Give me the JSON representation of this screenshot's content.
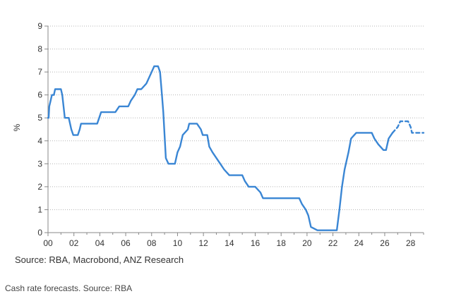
{
  "chart_data": {
    "type": "line",
    "ylabel": "%",
    "ylim": [
      0,
      9
    ],
    "xlim": [
      2000,
      2029
    ],
    "y_ticks": [
      "0",
      "1",
      "2",
      "3",
      "4",
      "5",
      "6",
      "7",
      "8",
      "9"
    ],
    "x_ticks": [
      "00",
      "02",
      "04",
      "06",
      "08",
      "10",
      "12",
      "14",
      "16",
      "18",
      "20",
      "22",
      "24",
      "26",
      "28"
    ],
    "grid": "horizontal dotted",
    "colors": {
      "line": "#3a86d4",
      "grid": "#b5b5b5",
      "axis": "#888888"
    },
    "series": [
      {
        "style": "solid",
        "x": [
          2000.0,
          2000.05,
          2000.1,
          2000.2,
          2000.3,
          2000.45,
          2000.55,
          2000.7,
          2000.85,
          2001.0,
          2001.1,
          2001.2,
          2001.3,
          2001.45,
          2001.6,
          2001.7,
          2001.8,
          2001.95,
          2002.3,
          2002.45,
          2002.55,
          2002.7,
          2003.0,
          2003.4,
          2003.5,
          2003.8,
          2003.95,
          2004.1,
          2004.3,
          2004.8,
          2005.0,
          2005.2,
          2005.5,
          2005.8,
          2006.0,
          2006.2,
          2006.4,
          2006.7,
          2006.9,
          2007.2,
          2007.6,
          2007.8,
          2008.0,
          2008.2,
          2008.5,
          2008.65,
          2008.8,
          2008.9,
          2009.0,
          2009.1,
          2009.3,
          2009.8,
          2010.0,
          2010.2,
          2010.4,
          2010.8,
          2010.9,
          2011.5,
          2011.8,
          2011.95,
          2012.3,
          2012.45,
          2012.7,
          2013.0,
          2013.3,
          2013.6,
          2014.0,
          2015.0,
          2015.2,
          2015.5,
          2016.0,
          2016.4,
          2016.6,
          2017.0,
          2019.4,
          2019.6,
          2019.9,
          2020.1,
          2020.3,
          2020.8,
          2022.3,
          2022.5,
          2022.7,
          2022.9,
          2023.2,
          2023.4,
          2023.8,
          2024.0,
          2025.0,
          2025.2,
          2025.5,
          2025.9,
          2026.1,
          2026.3,
          2026.6
        ],
        "values": [
          5.0,
          5.0,
          5.5,
          5.75,
          6.0,
          6.0,
          6.25,
          6.25,
          6.25,
          6.25,
          6.0,
          5.5,
          5.0,
          5.0,
          5.0,
          4.75,
          4.5,
          4.25,
          4.25,
          4.5,
          4.75,
          4.75,
          4.75,
          4.75,
          4.75,
          4.75,
          5.0,
          5.25,
          5.25,
          5.25,
          5.25,
          5.25,
          5.5,
          5.5,
          5.5,
          5.5,
          5.75,
          6.0,
          6.25,
          6.25,
          6.5,
          6.75,
          7.0,
          7.25,
          7.25,
          7.0,
          6.0,
          5.25,
          4.25,
          3.25,
          3.0,
          3.0,
          3.5,
          3.75,
          4.25,
          4.5,
          4.75,
          4.75,
          4.5,
          4.25,
          4.25,
          3.75,
          3.5,
          3.25,
          3.0,
          2.75,
          2.5,
          2.5,
          2.25,
          2.0,
          2.0,
          1.75,
          1.5,
          1.5,
          1.5,
          1.25,
          1.0,
          0.75,
          0.25,
          0.1,
          0.1,
          1.0,
          2.0,
          2.75,
          3.5,
          4.1,
          4.35,
          4.35,
          4.35,
          4.1,
          3.85,
          3.6,
          3.6,
          4.1,
          4.35
        ]
      },
      {
        "style": "dashed",
        "x": [
          2026.6,
          2027.0,
          2027.2,
          2027.5,
          2027.8,
          2028.0,
          2028.1,
          2028.3,
          2028.5,
          2029.0
        ],
        "values": [
          4.35,
          4.6,
          4.85,
          4.85,
          4.85,
          4.6,
          4.35,
          4.35,
          4.35,
          4.35
        ]
      }
    ]
  },
  "source_text": "Source: RBA, Macrobond, ANZ Research",
  "caption": "Cash rate forecasts. Source: RBA"
}
